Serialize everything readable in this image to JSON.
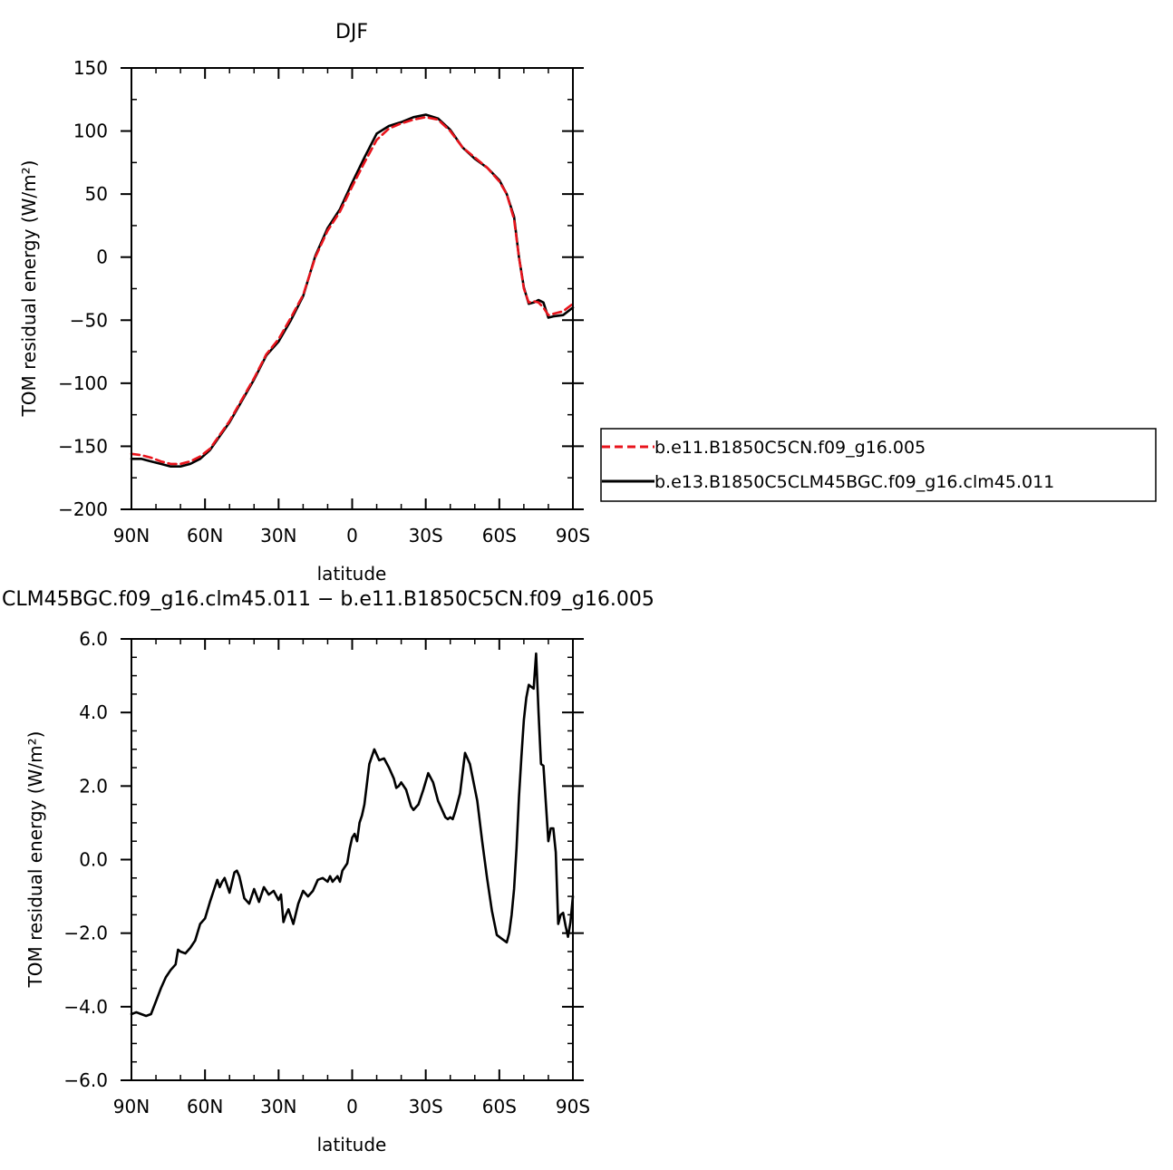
{
  "chart_data": [
    {
      "type": "line",
      "title": "DJF",
      "xlabel": "latitude",
      "ylabel": "TOM residual energy (W/m²)",
      "xlim": [
        90,
        -90
      ],
      "ylim": [
        -200,
        150
      ],
      "xticks": [
        90,
        60,
        30,
        0,
        -30,
        -60,
        -90
      ],
      "xtick_labels": [
        "90N",
        "60N",
        "30N",
        "0",
        "30S",
        "60S",
        "90S"
      ],
      "yticks": [
        -200,
        -150,
        -100,
        -50,
        0,
        50,
        100,
        150
      ],
      "ytick_labels": [
        "−200",
        "−150",
        "−100",
        "−50",
        "0",
        "50",
        "100",
        "150"
      ],
      "legend_position": "right",
      "series": [
        {
          "name": "b.e11.B1850C5CN.f09_g16.005",
          "color": "#e8141c",
          "dash": "dashed",
          "x": [
            90,
            86,
            82,
            78,
            74,
            70,
            66,
            62,
            58,
            54,
            50,
            45,
            40,
            35,
            30,
            25,
            20,
            15,
            10,
            5,
            0,
            -5,
            -10,
            -15,
            -20,
            -25,
            -30,
            -35,
            -40,
            -45,
            -50,
            -55,
            -60,
            -63,
            -66,
            -68,
            -70,
            -72,
            -74,
            -76,
            -78,
            -80,
            -82,
            -86,
            -90
          ],
          "y": [
            -156,
            -157,
            -159,
            -162,
            -164,
            -164,
            -162,
            -158,
            -152,
            -141,
            -130,
            -113,
            -96,
            -77,
            -65,
            -48,
            -30,
            0,
            21,
            36,
            56,
            75,
            93,
            102,
            106,
            109,
            111,
            109,
            100,
            87,
            79,
            71,
            60,
            50,
            30,
            0,
            -25,
            -36,
            -35,
            -36,
            -40,
            -46,
            -45,
            -43,
            -37
          ]
        },
        {
          "name": "b.e13.B1850C5CLM45BGC.f09_g16.clm45.011",
          "color": "#000000",
          "dash": "solid",
          "x": [
            90,
            86,
            82,
            78,
            74,
            70,
            66,
            62,
            58,
            54,
            50,
            45,
            40,
            35,
            30,
            25,
            20,
            15,
            10,
            5,
            0,
            -5,
            -10,
            -15,
            -20,
            -25,
            -30,
            -35,
            -40,
            -45,
            -50,
            -55,
            -60,
            -63,
            -66,
            -68,
            -70,
            -72,
            -74,
            -76,
            -78,
            -80,
            -82,
            -86,
            -90
          ],
          "y": [
            -160,
            -160,
            -162,
            -164,
            -166,
            -166,
            -164,
            -160,
            -153,
            -142,
            -131,
            -114,
            -97,
            -78,
            -67,
            -50,
            -31,
            1,
            23,
            38,
            59,
            79,
            98,
            104,
            107,
            111,
            113,
            110,
            101,
            87,
            78,
            71,
            61,
            50,
            32,
            0,
            -24,
            -37,
            -36,
            -34,
            -36,
            -48,
            -47,
            -46,
            -40
          ]
        }
      ]
    },
    {
      "type": "line",
      "title": "CLM45BGC.f09_g16.clm45.011 − b.e11.B1850C5CN.f09_g16.005",
      "xlabel": "latitude",
      "ylabel": "TOM residual energy (W/m²)",
      "xlim": [
        90,
        -90
      ],
      "ylim": [
        -6,
        6
      ],
      "xticks": [
        90,
        60,
        30,
        0,
        -30,
        -60,
        -90
      ],
      "xtick_labels": [
        "90N",
        "60N",
        "30N",
        "0",
        "30S",
        "60S",
        "90S"
      ],
      "yticks": [
        -6,
        -4,
        -2,
        0,
        2,
        4,
        6
      ],
      "ytick_labels": [
        "−6.0",
        "−4.0",
        "−2.0",
        "0.0",
        "2.0",
        "4.0",
        "6.0"
      ],
      "series": [
        {
          "color": "#000000",
          "dash": "solid",
          "x": [
            90,
            88,
            86,
            84,
            82,
            80,
            78,
            76,
            74,
            72,
            71,
            70,
            68,
            66,
            64,
            62,
            60,
            58,
            56,
            55,
            54,
            53,
            52,
            50,
            48,
            47,
            46,
            45,
            44,
            42,
            40,
            38,
            36,
            34,
            32,
            30,
            29,
            28,
            27,
            26,
            24,
            22,
            20,
            18,
            16,
            14,
            12,
            10,
            9,
            8,
            6,
            5,
            4,
            2,
            1,
            0,
            -1,
            -2,
            -3,
            -4,
            -5,
            -7,
            -9,
            -10,
            -11,
            -13,
            -15,
            -17,
            -18,
            -19,
            -20,
            -22,
            -24,
            -25,
            -27,
            -29,
            -31,
            -33,
            -35,
            -37,
            -38,
            -39,
            -40,
            -41,
            -42,
            -44,
            -46,
            -48,
            -51,
            -53,
            -55,
            -57,
            -59,
            -61,
            -63,
            -64,
            -65,
            -66,
            -67,
            -68,
            -69,
            -70,
            -71,
            -72,
            -73,
            -74,
            -75,
            -76,
            -77,
            -78,
            -80,
            -81,
            -82,
            -83,
            -84,
            -85,
            -86,
            -87,
            -88,
            -89,
            -90
          ],
          "y": [
            -4.2,
            -4.15,
            -4.2,
            -4.25,
            -4.2,
            -3.85,
            -3.5,
            -3.2,
            -3.0,
            -2.85,
            -2.45,
            -2.5,
            -2.55,
            -2.4,
            -2.2,
            -1.75,
            -1.6,
            -1.15,
            -0.75,
            -0.55,
            -0.75,
            -0.6,
            -0.5,
            -0.9,
            -0.35,
            -0.3,
            -0.45,
            -0.75,
            -1.05,
            -1.2,
            -0.8,
            -1.15,
            -0.75,
            -0.95,
            -0.85,
            -1.1,
            -0.95,
            -1.7,
            -1.5,
            -1.35,
            -1.75,
            -1.2,
            -0.85,
            -1.0,
            -0.85,
            -0.55,
            -0.5,
            -0.6,
            -0.45,
            -0.6,
            -0.45,
            -0.6,
            -0.3,
            -0.1,
            0.3,
            0.6,
            0.7,
            0.5,
            1.0,
            1.2,
            1.5,
            2.6,
            3.0,
            2.85,
            2.7,
            2.75,
            2.5,
            2.2,
            1.95,
            2.0,
            2.1,
            1.9,
            1.45,
            1.35,
            1.5,
            1.9,
            2.35,
            2.1,
            1.6,
            1.3,
            1.15,
            1.1,
            1.15,
            1.1,
            1.3,
            1.8,
            2.9,
            2.6,
            1.6,
            0.5,
            -0.5,
            -1.4,
            -2.05,
            -2.15,
            -2.25,
            -2.0,
            -1.5,
            -0.8,
            0.3,
            1.7,
            2.8,
            3.8,
            4.4,
            4.75,
            4.7,
            4.65,
            5.6,
            4.0,
            2.6,
            2.55,
            0.5,
            0.85,
            0.85,
            0.2,
            -1.75,
            -1.5,
            -1.45,
            -1.8,
            -2.1,
            -1.7,
            -1.0
          ]
        }
      ]
    }
  ]
}
